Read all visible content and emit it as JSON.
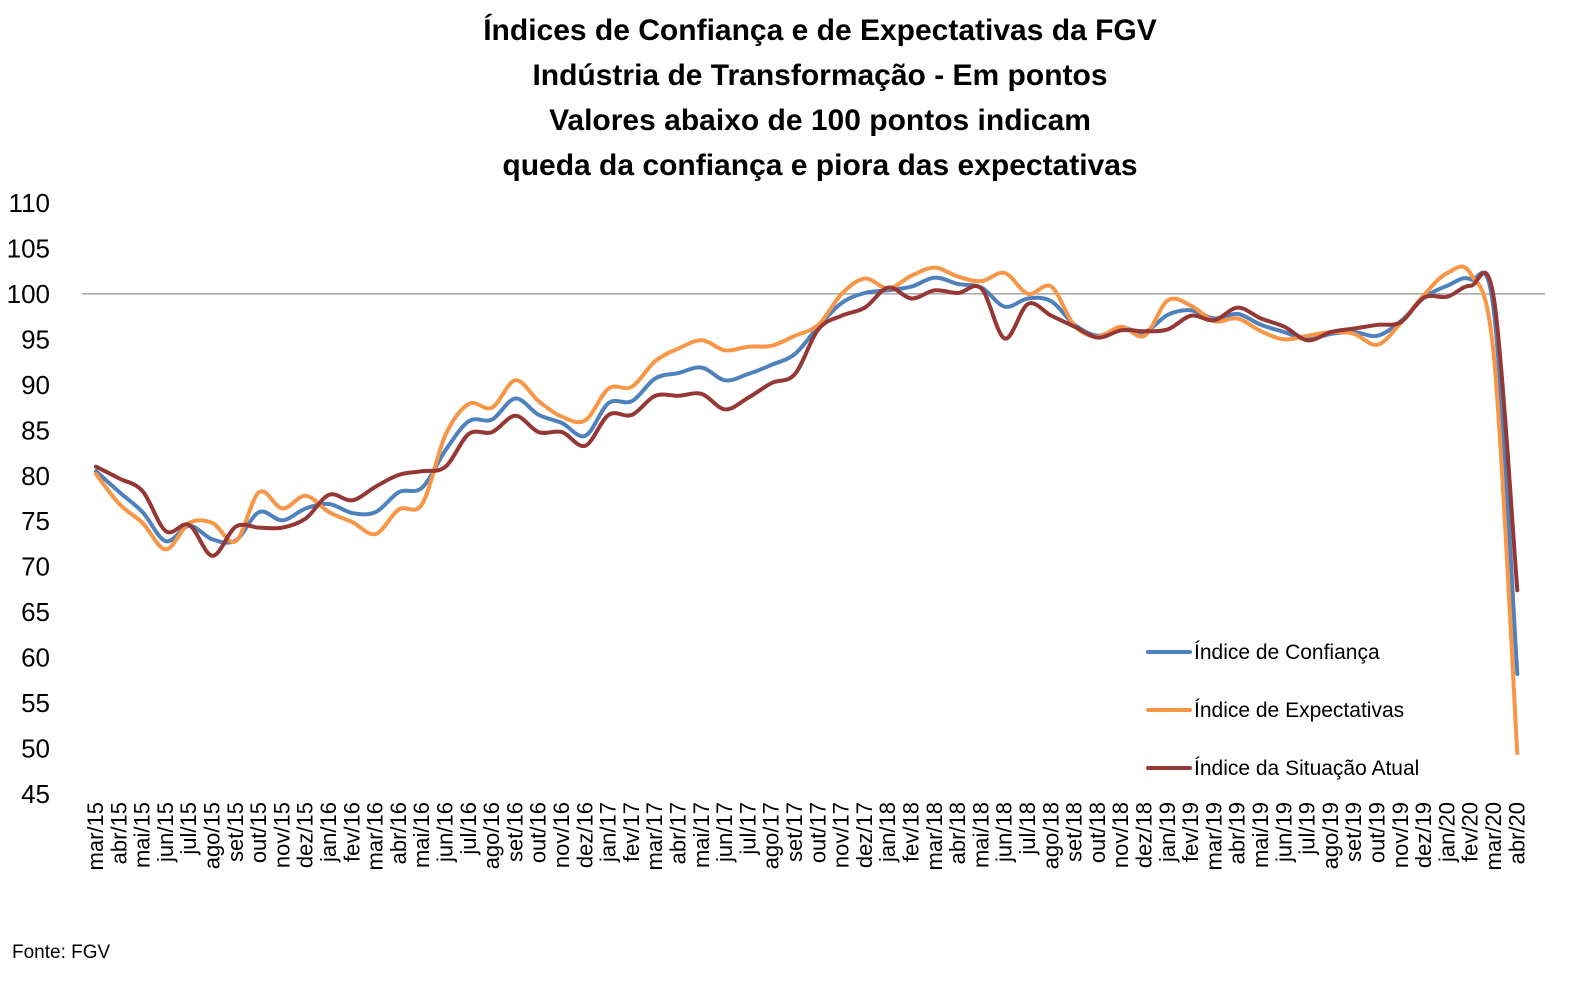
{
  "chart_data": {
    "type": "line",
    "title_lines": [
      "Índices de Confiança e de Expectativas da FGV",
      "Indústria de Transformação - Em pontos",
      "Valores abaixo de 100 pontos indicam",
      "queda da confiança e piora das expectativas"
    ],
    "ylim": [
      45,
      110
    ],
    "yticks": [
      "45",
      "50",
      "55",
      "60",
      "65",
      "70",
      "75",
      "80",
      "85",
      "90",
      "95",
      "100",
      "105",
      "110"
    ],
    "reference_line": 100,
    "grid": false,
    "legend_position": "bottom-right",
    "categories": [
      "mar/15",
      "abr/15",
      "mai/15",
      "jun/15",
      "jul/15",
      "ago/15",
      "set/15",
      "out/15",
      "nov/15",
      "dez/15",
      "jan/16",
      "fev/16",
      "mar/16",
      "abr/16",
      "mai/16",
      "jun/16",
      "jul/16",
      "ago/16",
      "set/16",
      "out/16",
      "nov/16",
      "dez/16",
      "jan/17",
      "fev/17",
      "mar/17",
      "abr/17",
      "mai/17",
      "jun/17",
      "jul/17",
      "ago/17",
      "set/17",
      "out/17",
      "nov/17",
      "dez/17",
      "jan/18",
      "fev/18",
      "mar/18",
      "abr/18",
      "mai/18",
      "jun/18",
      "jul/18",
      "ago/18",
      "set/18",
      "out/18",
      "nov/18",
      "dez/18",
      "jan/19",
      "fev/19",
      "mar/19",
      "abr/19",
      "mai/19",
      "jun/19",
      "jul/19",
      "ago/19",
      "set/19",
      "out/19",
      "nov/19",
      "dez/19",
      "jan/20",
      "fev/20",
      "mar/20",
      "abr/20"
    ],
    "series": [
      {
        "name": "Índice de Confiança",
        "color": "#4f81bd",
        "values": [
          80.5,
          78.2,
          76.0,
          72.8,
          74.5,
          73.0,
          72.9,
          76.0,
          75.1,
          76.4,
          76.9,
          75.9,
          76.0,
          78.2,
          78.7,
          82.8,
          86.0,
          86.2,
          88.5,
          86.7,
          85.8,
          84.4,
          88.0,
          88.2,
          90.7,
          91.3,
          91.9,
          90.5,
          91.2,
          92.2,
          93.4,
          96.4,
          99.0,
          100.1,
          100.4,
          100.8,
          101.8,
          101.1,
          100.7,
          98.6,
          99.5,
          99.2,
          96.6,
          95.4,
          96.3,
          95.8,
          97.7,
          98.2,
          97.3,
          97.8,
          96.6,
          95.8,
          95.0,
          95.6,
          95.8,
          95.4,
          97.0,
          99.6,
          100.9,
          101.6,
          98.0,
          58.2
        ]
      },
      {
        "name": "Índice de Expectativas",
        "color": "#f79646",
        "values": [
          80.2,
          76.9,
          74.8,
          71.9,
          74.8,
          74.8,
          72.8,
          78.2,
          76.4,
          77.8,
          76.0,
          74.9,
          73.6,
          76.3,
          76.9,
          84.5,
          87.9,
          87.5,
          90.5,
          88.2,
          86.5,
          86.1,
          89.6,
          89.8,
          92.6,
          94.0,
          94.9,
          93.8,
          94.2,
          94.3,
          95.4,
          96.6,
          100.0,
          101.7,
          100.6,
          102.0,
          102.9,
          101.9,
          101.4,
          102.3,
          100.0,
          100.8,
          96.5,
          95.3,
          96.4,
          95.4,
          99.3,
          98.7,
          97.0,
          97.3,
          95.9,
          95.0,
          95.4,
          95.8,
          95.6,
          94.4,
          96.8,
          99.9,
          102.3,
          102.2,
          93.0,
          49.5
        ]
      },
      {
        "name": "Índice da Situação Atual",
        "color": "#953735",
        "values": [
          81.0,
          79.7,
          78.3,
          73.9,
          74.6,
          71.2,
          74.4,
          74.3,
          74.3,
          75.3,
          77.9,
          77.3,
          78.8,
          80.1,
          80.5,
          81.0,
          84.6,
          84.8,
          86.6,
          84.8,
          84.8,
          83.3,
          86.7,
          86.7,
          88.8,
          88.8,
          89.0,
          87.3,
          88.6,
          90.2,
          91.2,
          96.1,
          97.6,
          98.5,
          100.7,
          99.5,
          100.4,
          100.1,
          100.6,
          95.1,
          98.9,
          97.6,
          96.4,
          95.2,
          96.0,
          95.9,
          96.1,
          97.6,
          97.1,
          98.5,
          97.3,
          96.4,
          94.9,
          95.8,
          96.2,
          96.6,
          96.9,
          99.6,
          99.7,
          100.9,
          99.4,
          67.4
        ]
      }
    ],
    "source": "Fonte: FGV"
  }
}
